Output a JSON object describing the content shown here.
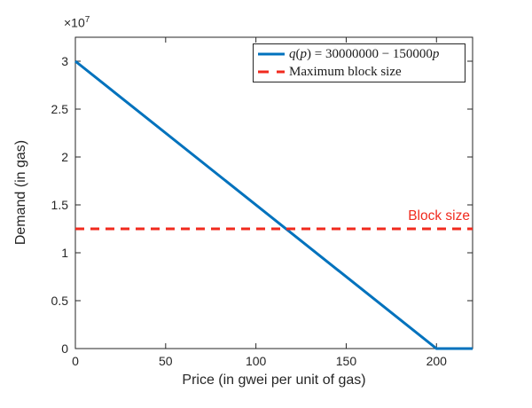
{
  "chart_data": {
    "type": "line",
    "title": "",
    "xlabel": "Price (in gwei per unit of gas)",
    "ylabel": "Demand (in gas)",
    "y_exponent_label": {
      "base": "×10",
      "exponent": "7"
    },
    "xlim": [
      0,
      220
    ],
    "ylim": [
      0,
      32500000
    ],
    "grid": false,
    "legend_position": "northeast",
    "xticks": {
      "values": [
        0,
        50,
        100,
        150,
        200
      ],
      "labels": [
        "0",
        "50",
        "100",
        "150",
        "200"
      ]
    },
    "yticks": {
      "values": [
        0,
        5000000,
        10000000,
        15000000,
        20000000,
        25000000,
        30000000
      ],
      "labels": [
        "0",
        "0.5",
        "1",
        "1.5",
        "2",
        "2.5",
        "3"
      ]
    },
    "series": [
      {
        "name": "q(p) = 30000000 − 150000p",
        "line_style": "solid",
        "color": "#0072BD",
        "points": [
          [
            0,
            30000000
          ],
          [
            200,
            0
          ],
          [
            220,
            0
          ]
        ]
      },
      {
        "name": "Maximum block size",
        "line_style": "dashed",
        "color": "#F02A1E",
        "points": [
          [
            0,
            12500000
          ],
          [
            220,
            12500000
          ]
        ]
      }
    ],
    "annotation": {
      "text": "Block size",
      "color": "#F02A1E"
    },
    "axis_color": "#262626"
  }
}
